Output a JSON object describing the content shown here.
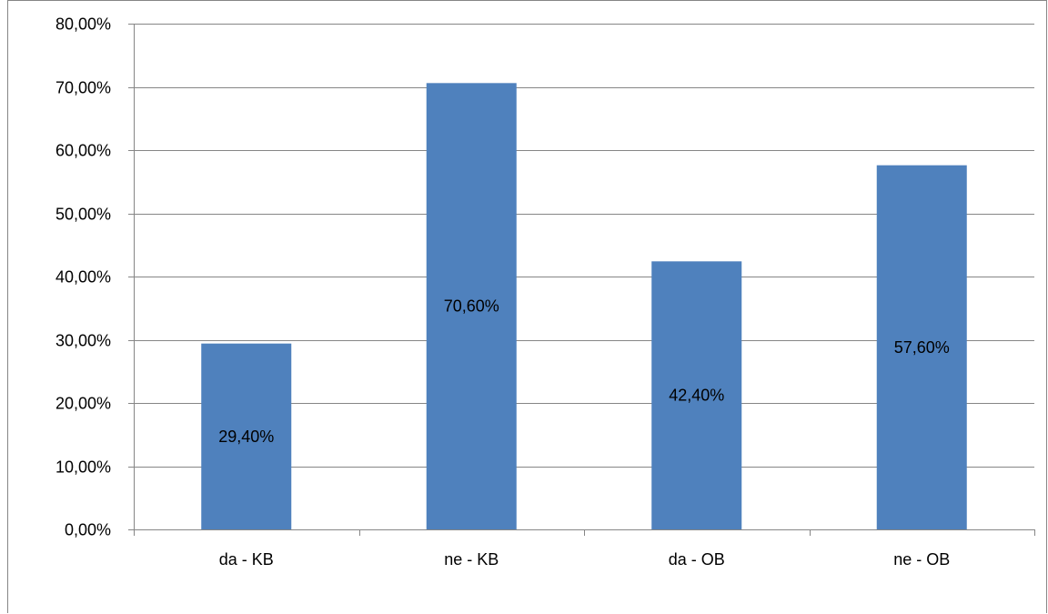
{
  "chart_data": {
    "type": "bar",
    "categories": [
      "da - KB",
      "ne - KB",
      "da - OB",
      "ne - OB"
    ],
    "values": [
      29.4,
      70.6,
      42.4,
      57.6
    ],
    "data_labels": [
      "29,40%",
      "70,60%",
      "42,40%",
      "57,60%"
    ],
    "title": "",
    "xlabel": "",
    "ylabel": "",
    "ylim": [
      0,
      80
    ],
    "yticks": [
      0,
      10,
      20,
      30,
      40,
      50,
      60,
      70,
      80
    ],
    "ytick_labels": [
      "0,00%",
      "10,00%",
      "20,00%",
      "30,00%",
      "40,00%",
      "50,00%",
      "60,00%",
      "70,00%",
      "80,00%"
    ],
    "grid": true,
    "legend": "none",
    "bar_color": "#4F81BD",
    "gridline_color": "#868686"
  }
}
